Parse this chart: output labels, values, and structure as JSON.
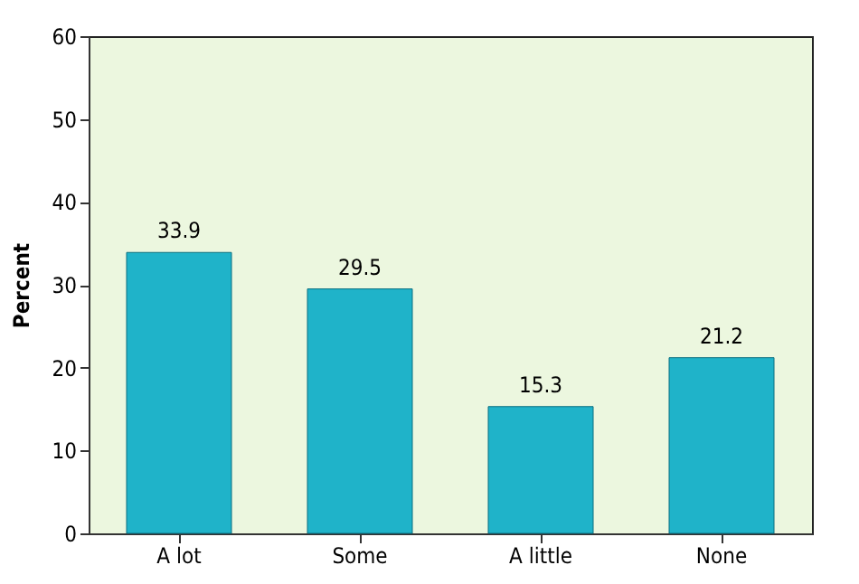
{
  "chart_data": {
    "type": "bar",
    "ylabel": "Percent",
    "categories": [
      "A lot",
      "Some",
      "A little",
      "None"
    ],
    "values": [
      33.9,
      29.5,
      15.3,
      21.2
    ],
    "color": "#1fb3c9",
    "ylim": [
      0,
      60
    ],
    "yticks": [
      0,
      10,
      20,
      30,
      40,
      50,
      60
    ],
    "grid": false,
    "data_labels": true
  }
}
